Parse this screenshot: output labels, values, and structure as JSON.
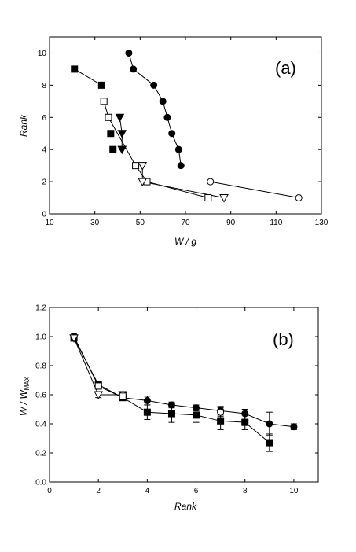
{
  "chart_data": [
    {
      "type": "scatter",
      "panel_label": "(a)",
      "xlabel": "W / g",
      "ylabel": "Rank",
      "xlim": [
        10,
        130
      ],
      "ylim": [
        0,
        11
      ],
      "xticks": [
        10,
        30,
        50,
        70,
        90,
        110,
        130
      ],
      "yticks": [
        0,
        2,
        4,
        6,
        8,
        10
      ],
      "grid": false,
      "series": [
        {
          "marker": "square-filled",
          "connect": true,
          "x": [
            21,
            33
          ],
          "y": [
            9,
            8
          ]
        },
        {
          "marker": "square-open",
          "connect": true,
          "x": [
            34,
            36,
            48,
            53,
            80
          ],
          "y": [
            7,
            6,
            3,
            2,
            1
          ]
        },
        {
          "marker": "square-filled",
          "connect": false,
          "x": [
            37,
            38
          ],
          "y": [
            5,
            4
          ]
        },
        {
          "marker": "triangle-down-filled",
          "connect": true,
          "x": [
            41,
            42,
            42
          ],
          "y": [
            6,
            5,
            4
          ]
        },
        {
          "marker": "triangle-down-open",
          "connect": true,
          "x": [
            51,
            51,
            87
          ],
          "y": [
            3,
            2,
            1
          ]
        },
        {
          "marker": "circle-filled",
          "connect": true,
          "x": [
            45,
            47,
            56,
            60,
            62,
            64,
            67,
            68
          ],
          "y": [
            10,
            9,
            8,
            7,
            6,
            5,
            4,
            3
          ]
        },
        {
          "marker": "circle-open",
          "connect": true,
          "x": [
            81,
            120
          ],
          "y": [
            2,
            1
          ]
        }
      ]
    },
    {
      "type": "scatter",
      "panel_label": "(b)",
      "xlabel": "Rank",
      "ylabel_main": "W / W",
      "ylabel_sub": "MAX",
      "xlim": [
        0,
        11
      ],
      "ylim": [
        0,
        1.2
      ],
      "xticks": [
        0,
        2,
        4,
        6,
        8,
        10
      ],
      "yticks": [
        0.0,
        0.2,
        0.4,
        0.6,
        0.8,
        1.0,
        1.2
      ],
      "ytick_labels": [
        "0.0",
        "0.2",
        "0.4",
        "0.6",
        "0.8",
        "1.0",
        "1.2"
      ],
      "grid": false,
      "series": [
        {
          "marker": "circle-filled",
          "connect": true,
          "x": [
            1,
            2,
            3,
            4,
            5,
            6,
            7,
            8,
            9,
            10
          ],
          "y": [
            1.0,
            0.66,
            0.58,
            0.56,
            0.53,
            0.51,
            0.49,
            0.47,
            0.4,
            0.38
          ],
          "err": [
            0.02,
            0.02,
            0.02,
            0.03,
            0.02,
            0.02,
            0.03,
            0.03,
            0.08,
            0.02
          ]
        },
        {
          "marker": "square-filled",
          "connect": true,
          "x": [
            1,
            2,
            3,
            4,
            5,
            6,
            7,
            8,
            9
          ],
          "y": [
            0.99,
            0.67,
            0.58,
            0.48,
            0.47,
            0.46,
            0.42,
            0.41,
            0.27
          ],
          "err": [
            0.02,
            0.02,
            0.02,
            0.05,
            0.06,
            0.05,
            0.06,
            0.05,
            0.06
          ]
        },
        {
          "marker": "triangle-down-open",
          "connect": true,
          "x": [
            1,
            2,
            3
          ],
          "y": [
            0.99,
            0.6,
            0.6
          ],
          "err": [
            0.02,
            0.02,
            0.02
          ]
        },
        {
          "marker": "circle-open",
          "connect": false,
          "x": [
            3,
            7
          ],
          "y": [
            0.6,
            0.48
          ],
          "err": [
            0.02,
            0.03
          ]
        },
        {
          "marker": "square-open",
          "connect": false,
          "x": [
            2,
            3
          ],
          "y": [
            0.66,
            0.59
          ],
          "err": [
            0.02,
            0.02
          ]
        }
      ]
    }
  ]
}
